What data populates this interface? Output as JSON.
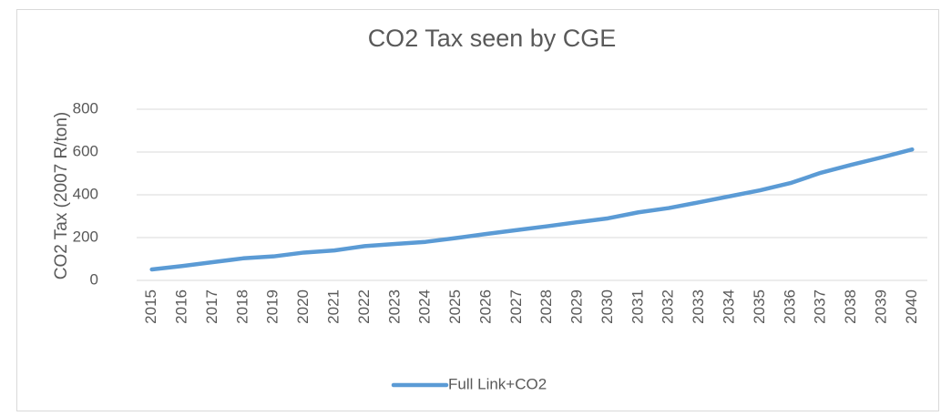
{
  "chart_data": {
    "type": "line",
    "title": "CO2 Tax seen by CGE",
    "y_label": "CO2 Tax (2007 R/ton)",
    "categories": [
      "2015",
      "2016",
      "2017",
      "2018",
      "2019",
      "2020",
      "2021",
      "2022",
      "2023",
      "2024",
      "2025",
      "2026",
      "2027",
      "2028",
      "2029",
      "2030",
      "2031",
      "2032",
      "2033",
      "2034",
      "2035",
      "2036",
      "2037",
      "2038",
      "2039",
      "2040"
    ],
    "series": [
      {
        "name": "Full Link+CO2",
        "color": "#5b9bd5",
        "values": [
          51,
          67,
          85,
          103,
          112,
          130,
          140,
          160,
          170,
          180,
          198,
          217,
          235,
          253,
          272,
          290,
          318,
          338,
          365,
          393,
          421,
          455,
          503,
          540,
          575,
          612
        ]
      }
    ],
    "ylim": [
      0,
      800
    ],
    "yticks": [
      0,
      200,
      400,
      600,
      800
    ],
    "grid": true,
    "legend": "bottom"
  }
}
